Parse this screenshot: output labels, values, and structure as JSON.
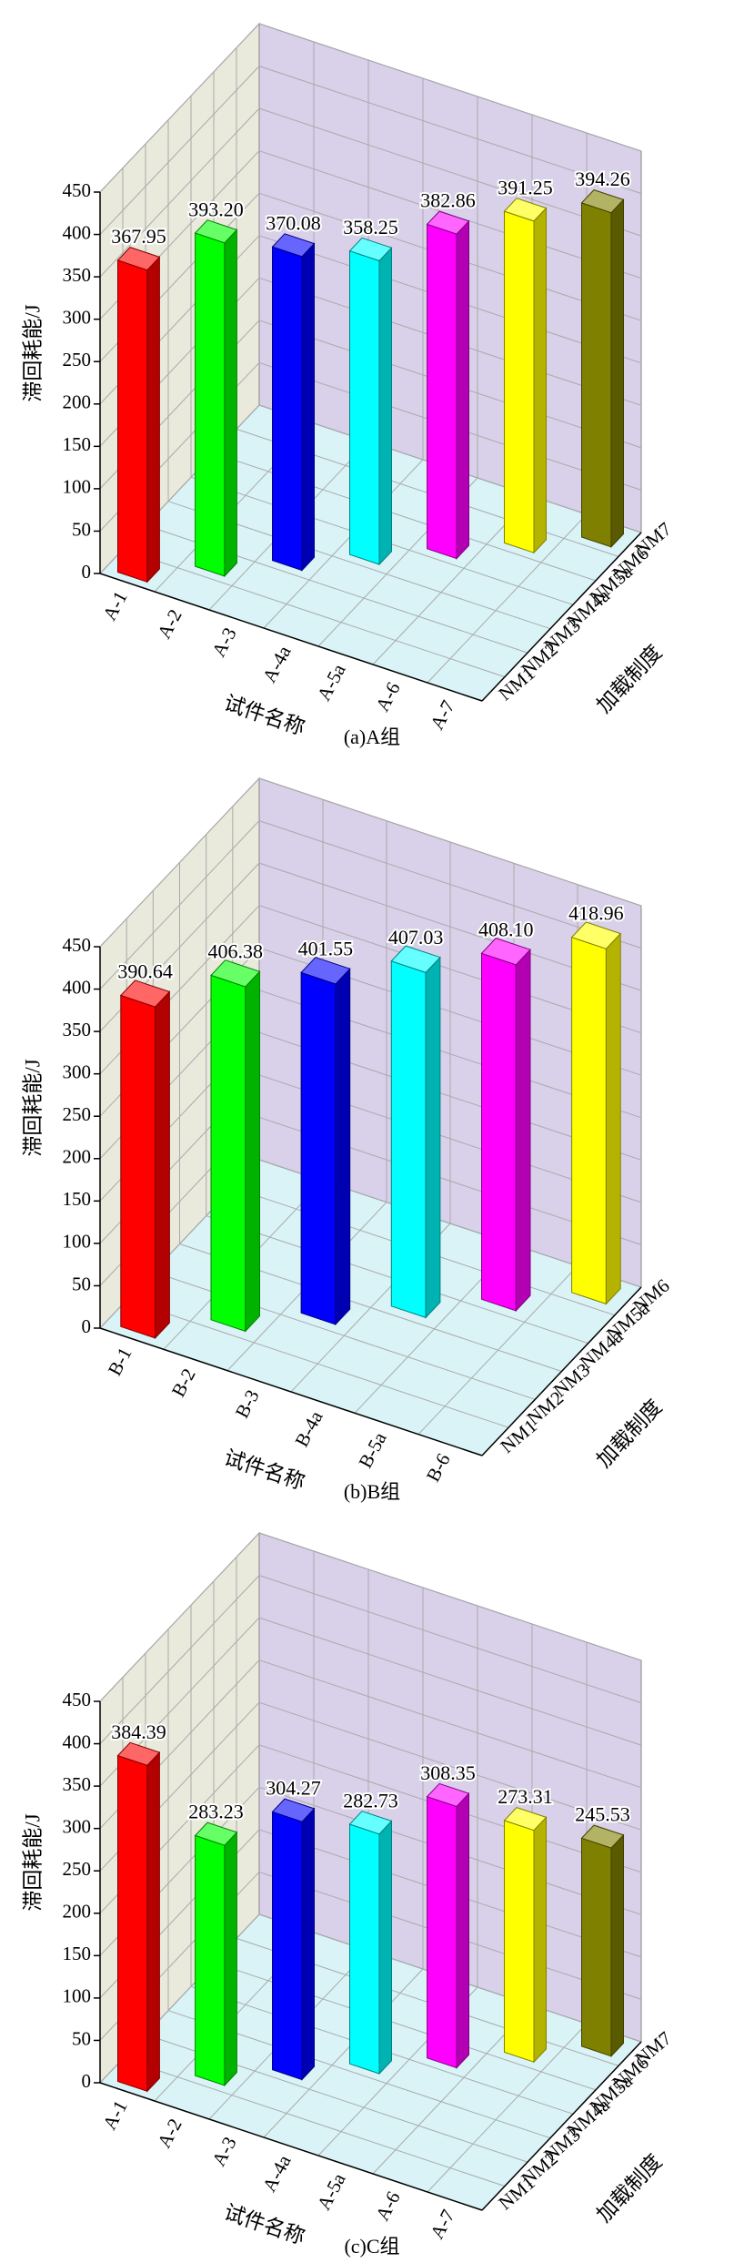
{
  "chart_data": [
    {
      "type": "bar3d",
      "caption": "(a)A组",
      "x_label": "试件名称",
      "depth_label": "加载制度",
      "y_label": "滞回耗能/J",
      "categories": [
        "A-1",
        "A-2",
        "A-3",
        "A-4a",
        "A-5a",
        "A-6",
        "A-7"
      ],
      "depth_categories": [
        "NM1",
        "NM2",
        "NM3",
        "NM4a",
        "NM5a",
        "NM6",
        "NM7"
      ],
      "values": [
        367.95,
        393.2,
        370.08,
        358.25,
        382.86,
        391.25,
        394.26
      ],
      "value_labels": [
        "367.95",
        "393.20",
        "370.08",
        "358.25",
        "382.86",
        "391.25",
        "394.26"
      ],
      "colors": [
        "#ff0000",
        "#00ff00",
        "#0000ff",
        "#00ffff",
        "#ff00ff",
        "#ffff00",
        "#808000"
      ],
      "ylim": [
        0,
        450
      ],
      "yticks": [
        0,
        50,
        100,
        150,
        200,
        250,
        300,
        350,
        400,
        450
      ],
      "grid": true
    },
    {
      "type": "bar3d",
      "caption": "(b)B组",
      "x_label": "试件名称",
      "depth_label": "加载制度",
      "y_label": "滞回耗能/J",
      "categories": [
        "B-1",
        "B-2",
        "B-3",
        "B-4a",
        "B-5a",
        "B-6"
      ],
      "depth_categories": [
        "NM1",
        "NM2",
        "NM3",
        "NM4a",
        "NM5a",
        "NM6"
      ],
      "values": [
        390.64,
        406.38,
        401.55,
        407.03,
        408.1,
        418.96
      ],
      "value_labels": [
        "390.64",
        "406.38",
        "401.55",
        "407.03",
        "408.10",
        "418.96"
      ],
      "colors": [
        "#ff0000",
        "#00ff00",
        "#0000ff",
        "#00ffff",
        "#ff00ff",
        "#ffff00"
      ],
      "ylim": [
        0,
        450
      ],
      "yticks": [
        0,
        50,
        100,
        150,
        200,
        250,
        300,
        350,
        400,
        450
      ],
      "grid": true
    },
    {
      "type": "bar3d",
      "caption": "(c)C组",
      "x_label": "试件名称",
      "depth_label": "加载制度",
      "y_label": "滞回耗能/J",
      "categories": [
        "A-1",
        "A-2",
        "A-3",
        "A-4a",
        "A-5a",
        "A-6",
        "A-7"
      ],
      "depth_categories": [
        "NM1",
        "NM2",
        "NM3",
        "NM4a",
        "NM5a",
        "NM6",
        "NM7"
      ],
      "values": [
        384.39,
        283.23,
        304.27,
        282.73,
        308.35,
        273.31,
        245.53
      ],
      "value_labels": [
        "384.39",
        "283.23",
        "304.27",
        "282.73",
        "308.35",
        "273.31",
        "245.53"
      ],
      "colors": [
        "#ff0000",
        "#00ff00",
        "#0000ff",
        "#00ffff",
        "#ff00ff",
        "#ffff00",
        "#808000"
      ],
      "ylim": [
        0,
        450
      ],
      "yticks": [
        0,
        50,
        100,
        150,
        200,
        250,
        300,
        350,
        400,
        450
      ],
      "grid": true
    }
  ]
}
